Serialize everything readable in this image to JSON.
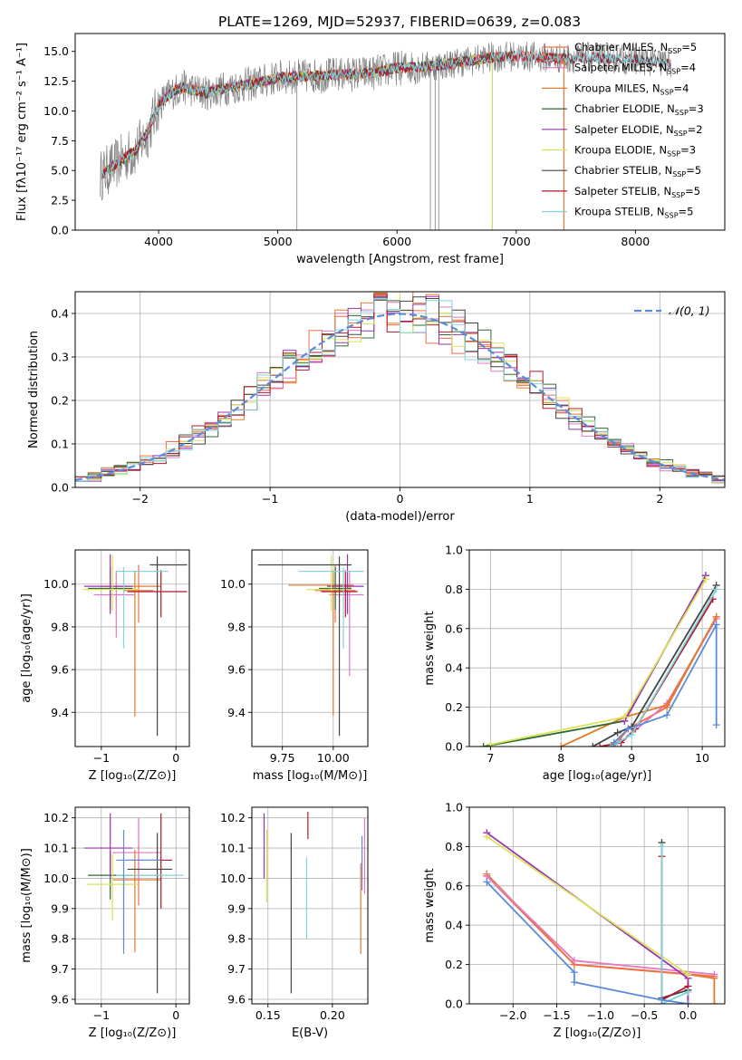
{
  "figure": {
    "title": "PLATE=1269, MJD=52937, FIBERID=0639, z=0.083",
    "colors": {
      "Chabrier MILES": "#f46d43",
      "Salpeter MILES": "#e377c2",
      "Kroupa MILES": "#e07b2a",
      "Chabrier ELODIE": "#2f6b2f",
      "Salpeter ELODIE": "#9b30b0",
      "Kroupa ELODIE": "#d8e35a",
      "Chabrier STELIB": "#444444",
      "Salpeter STELIB": "#b2182b",
      "Kroupa STELIB": "#80d4dc",
      "data": "#808080",
      "blue": "#5b8bd9"
    }
  },
  "chart_data": [
    {
      "id": "spectrum",
      "type": "line",
      "xlabel": "wavelength [Angstrom, rest frame]",
      "ylabel": "Flux [fλ10⁻¹⁷ erg cm⁻² s⁻¹ A⁻¹]",
      "xlim": [
        3300,
        8750
      ],
      "ylim": [
        0,
        16.5
      ],
      "xticks": [
        4000,
        5000,
        6000,
        7000,
        8000
      ],
      "yticks": [
        0.0,
        2.5,
        5.0,
        7.5,
        10.0,
        12.5,
        15.0
      ],
      "legend_position": "top-right",
      "legend": [
        "Chabrier MILES, N_SSP=5",
        "Salpeter MILES, N_SSP=4",
        "Kroupa MILES, N_SSP=4",
        "Chabrier ELODIE, N_SSP=3",
        "Salpeter ELODIE, N_SSP=2",
        "Kroupa ELODIE, N_SSP=3",
        "Chabrier STELIB, N_SSP=5",
        "Salpeter STELIB, N_SSP=5",
        "Kroupa STELIB, N_SSP=5"
      ],
      "model_continuum": {
        "x": [
          3500,
          3600,
          3700,
          3800,
          3900,
          4000,
          4100,
          4200,
          4400,
          4600,
          4800,
          5000,
          5200,
          5400,
          5600,
          5800,
          6000,
          6200,
          6400,
          6600,
          6800,
          7000,
          7200,
          7400,
          7600,
          7800,
          8000,
          8200,
          8300
        ],
        "y": [
          4.5,
          5.2,
          6.0,
          6.6,
          8.0,
          10.5,
          11.5,
          12.0,
          11.5,
          12.0,
          12.3,
          12.8,
          12.9,
          13.0,
          13.1,
          13.2,
          13.6,
          13.7,
          13.9,
          14.2,
          14.5,
          14.6,
          14.5,
          14.4,
          14.5,
          14.4,
          14.3,
          14.1,
          14.0
        ]
      }
    },
    {
      "id": "residuals",
      "type": "line",
      "xlabel": "(data-model)/error",
      "ylabel": "Normed distribution",
      "xlim": [
        -2.5,
        2.5
      ],
      "ylim": [
        0,
        0.45
      ],
      "xticks": [
        -2,
        -1,
        0,
        1,
        2
      ],
      "xticklabels": [
        "−2",
        "−1",
        "0",
        "1",
        "2"
      ],
      "yticks": [
        0.0,
        0.1,
        0.2,
        0.3,
        0.4
      ],
      "legend": [
        "𝒩(0, 1)"
      ],
      "legend_position": "top-right",
      "curve": "normal(0,1)"
    },
    {
      "id": "age-vs-Z",
      "type": "scatter",
      "xlabel": "Z [log₁₀(Z/Z⊙)]",
      "ylabel": "age  [log₁₀(age/yr)]",
      "xlim": [
        -1.35,
        0.18
      ],
      "ylim": [
        9.24,
        10.16
      ],
      "xticks": [
        -1,
        0
      ],
      "xticklabels": [
        "−1",
        "0"
      ],
      "yticks": [
        9.4,
        9.6,
        9.8,
        10.0
      ],
      "points": [
        {
          "model": "Chabrier MILES",
          "x": -0.5,
          "y": 9.97,
          "xerr": [
            0.2,
            0.2
          ],
          "yerr": [
            0.15,
            0.12
          ]
        },
        {
          "model": "Salpeter MILES",
          "x": -0.8,
          "y": 9.95,
          "xerr": [
            0.3,
            0.25
          ],
          "yerr": [
            0.2,
            0.11
          ]
        },
        {
          "model": "Kroupa MILES",
          "x": -0.55,
          "y": 9.99,
          "xerr": [
            0.45,
            0.35
          ],
          "yerr": [
            0.61,
            0.07
          ]
        },
        {
          "model": "Chabrier ELODIE",
          "x": -0.88,
          "y": 9.98,
          "xerr": [
            0.3,
            0.3
          ],
          "yerr": [
            0.1,
            0.1
          ]
        },
        {
          "model": "Salpeter ELODIE",
          "x": -0.88,
          "y": 9.99,
          "xerr": [
            0.35,
            0.3
          ],
          "yerr": [
            0.13,
            0.15
          ]
        },
        {
          "model": "Kroupa ELODIE",
          "x": -0.85,
          "y": 9.975,
          "xerr": [
            0.4,
            0.35
          ],
          "yerr": [
            0.1,
            0.16
          ]
        },
        {
          "model": "Chabrier STELIB",
          "x": -0.25,
          "y": 10.09,
          "xerr": [
            0.1,
            0.4
          ],
          "yerr": [
            0.8,
            0.04
          ]
        },
        {
          "model": "Salpeter STELIB",
          "x": -0.2,
          "y": 9.965,
          "xerr": [
            0.45,
            0.35
          ],
          "yerr": [
            0.12,
            0.1
          ]
        },
        {
          "model": "Kroupa STELIB",
          "x": -0.7,
          "y": 10.06,
          "xerr": [
            0.1,
            0.6
          ],
          "yerr": [
            0.36,
            0.02
          ]
        }
      ]
    },
    {
      "id": "age-vs-mass",
      "type": "scatter",
      "xlabel": "mass [log₁₀(M/M⊙)]",
      "ylabel": "",
      "xlim": [
        9.6,
        10.17
      ],
      "ylim": [
        9.24,
        10.16
      ],
      "xticks": [
        9.75,
        10.0
      ],
      "xticklabels": [
        "9.75",
        "10.00"
      ],
      "yticks": [
        9.4,
        9.6,
        9.8,
        10.0
      ],
      "points": [
        {
          "model": "Chabrier MILES",
          "x": 10.01,
          "y": 9.97,
          "xerr": [
            0.1,
            0.1
          ],
          "yerr": [
            0.15,
            0.12
          ]
        },
        {
          "model": "Salpeter MILES",
          "x": 10.08,
          "y": 9.95,
          "xerr": [
            0.1,
            0.07
          ],
          "yerr": [
            0.38,
            0.11
          ]
        },
        {
          "model": "Kroupa MILES",
          "x": 10.0,
          "y": 9.995,
          "xerr": [
            0.22,
            0.1
          ],
          "yerr": [
            0.61,
            0.07
          ]
        },
        {
          "model": "Chabrier ELODIE",
          "x": 10.01,
          "y": 9.98,
          "xerr": [
            0.08,
            0.08
          ],
          "yerr": [
            0.1,
            0.1
          ]
        },
        {
          "model": "Salpeter ELODIE",
          "x": 10.07,
          "y": 9.99,
          "xerr": [
            0.1,
            0.08
          ],
          "yerr": [
            0.13,
            0.15
          ]
        },
        {
          "model": "Kroupa ELODIE",
          "x": 9.99,
          "y": 9.975,
          "xerr": [
            0.12,
            0.1
          ],
          "yerr": [
            0.1,
            0.16
          ]
        },
        {
          "model": "Chabrier STELIB",
          "x": 10.03,
          "y": 10.09,
          "xerr": [
            0.4,
            0.06
          ],
          "yerr": [
            0.8,
            0.04
          ]
        },
        {
          "model": "Salpeter STELIB",
          "x": 10.06,
          "y": 9.965,
          "xerr": [
            0.12,
            0.06
          ],
          "yerr": [
            0.12,
            0.1
          ]
        },
        {
          "model": "Kroupa STELIB",
          "x": 10.05,
          "y": 10.06,
          "xerr": [
            0.22,
            0.1
          ],
          "yerr": [
            0.36,
            0.02
          ]
        }
      ]
    },
    {
      "id": "massweight-vs-age",
      "type": "line",
      "xlabel": "age  [log₁₀(age/yr)]",
      "ylabel": "mass weight",
      "xlim": [
        6.7,
        10.32
      ],
      "ylim": [
        0,
        1
      ],
      "xticks": [
        7,
        8,
        9,
        10
      ],
      "yticks": [
        0.0,
        0.2,
        0.4,
        0.6,
        0.8,
        1.0
      ],
      "series": [
        {
          "model": "Chabrier MILES",
          "x": [
            8.75,
            8.95,
            9.5,
            10.2
          ],
          "y": [
            0.0,
            0.09,
            0.2,
            0.66
          ]
        },
        {
          "model": "Salpeter MILES",
          "x": [
            8.85,
            9.5,
            10.2
          ],
          "y": [
            0.02,
            0.22,
            0.65
          ]
        },
        {
          "model": "Kroupa MILES",
          "x": [
            8.0,
            8.9,
            9.5,
            10.2
          ],
          "y": [
            0.0,
            0.15,
            0.21,
            0.66
          ]
        },
        {
          "model": "Chabrier ELODIE",
          "x": [
            6.9,
            8.9,
            10.05
          ],
          "y": [
            0.0,
            0.13,
            0.87
          ]
        },
        {
          "model": "Salpeter ELODIE",
          "x": [
            8.9,
            10.05
          ],
          "y": [
            0.13,
            0.87
          ]
        },
        {
          "model": "Kroupa ELODIE",
          "x": [
            7.0,
            8.9,
            10.05
          ],
          "y": [
            0.01,
            0.15,
            0.85
          ]
        },
        {
          "model": "Chabrier STELIB",
          "x": [
            8.45,
            8.8,
            9.0,
            10.2
          ],
          "y": [
            0.0,
            0.07,
            0.1,
            0.82
          ]
        },
        {
          "model": "Salpeter STELIB",
          "x": [
            8.55,
            8.85,
            9.05,
            10.15
          ],
          "y": [
            0.0,
            0.02,
            0.09,
            0.75
          ]
        },
        {
          "model": "Kroupa STELIB",
          "x": [
            8.7,
            8.8,
            9.0,
            10.2
          ],
          "y": [
            0.0,
            0.02,
            0.06,
            0.8
          ]
        },
        {
          "model": "blue",
          "x": [
            8.75,
            8.95,
            9.5,
            10.2,
            10.2
          ],
          "y": [
            0.02,
            0.09,
            0.16,
            0.62,
            0.11
          ]
        }
      ]
    },
    {
      "id": "mass-vs-Z",
      "type": "scatter",
      "xlabel": "Z [log₁₀(Z/Z⊙)]",
      "ylabel": "mass [log₁₀(M/M⊙)]",
      "xlim": [
        -1.35,
        0.18
      ],
      "ylim": [
        9.585,
        10.235
      ],
      "xticks": [
        -1,
        0
      ],
      "xticklabels": [
        "−1",
        "0"
      ],
      "yticks": [
        9.6,
        9.7,
        9.8,
        9.9,
        10.0,
        10.1,
        10.2
      ],
      "points": [
        {
          "model": "Chabrier MILES",
          "x": -0.5,
          "y": 10.01,
          "xerr": [
            0.25,
            0.3
          ],
          "yerr": [
            0.1,
            0.1
          ]
        },
        {
          "model": "Salpeter MILES",
          "x": -0.5,
          "y": 10.085,
          "xerr": [
            0.35,
            0.3
          ],
          "yerr": [
            0.1,
            0.115
          ]
        },
        {
          "model": "Kroupa MILES",
          "x": -0.55,
          "y": 9.995,
          "xerr": [
            0.3,
            0.35
          ],
          "yerr": [
            0.24,
            0.1
          ]
        },
        {
          "model": "Chabrier ELODIE",
          "x": -0.88,
          "y": 10.01,
          "xerr": [
            0.3,
            0.3
          ],
          "yerr": [
            0.08,
            0.08
          ]
        },
        {
          "model": "Salpeter ELODIE",
          "x": -0.88,
          "y": 10.1,
          "xerr": [
            0.35,
            0.3
          ],
          "yerr": [
            0.1,
            0.115
          ]
        },
        {
          "model": "Kroupa ELODIE",
          "x": -0.85,
          "y": 9.98,
          "xerr": [
            0.35,
            0.35
          ],
          "yerr": [
            0.12,
            0.1
          ]
        },
        {
          "model": "Chabrier STELIB",
          "x": -0.25,
          "y": 10.03,
          "xerr": [
            0.4,
            0.2
          ],
          "yerr": [
            0.41,
            0.12
          ]
        },
        {
          "model": "Salpeter STELIB",
          "x": -0.2,
          "y": 10.06,
          "xerr": [
            0.45,
            0.15
          ],
          "yerr": [
            0.16,
            0.155
          ]
        },
        {
          "model": "Kroupa STELIB",
          "x": -0.7,
          "y": 10.01,
          "xerr": [
            0.1,
            0.8
          ],
          "yerr": [
            0.23,
            0.06
          ]
        },
        {
          "model": "blue",
          "x": -0.7,
          "y": 10.06,
          "xerr": [
            0.1,
            0.5
          ],
          "yerr": [
            0.31,
            0.1
          ]
        }
      ]
    },
    {
      "id": "mass-vs-EBV",
      "type": "scatter",
      "xlabel": "E(B-V)",
      "ylabel": "",
      "xlim": [
        0.1375,
        0.2275
      ],
      "ylim": [
        9.585,
        10.235
      ],
      "xticks": [
        0.15,
        0.2
      ],
      "xticklabels": [
        "0.15",
        "0.20"
      ],
      "yticks": [
        9.6,
        9.7,
        9.8,
        9.9,
        10.0,
        10.1,
        10.2
      ],
      "points": [
        {
          "model": "Salpeter ELODIE",
          "x": 0.147,
          "y": 10.1,
          "yerr": [
            0.1,
            0.115
          ]
        },
        {
          "model": "Kroupa ELODIE",
          "x": 0.149,
          "y": 10.04,
          "yerr": [
            0.12,
            0.12
          ]
        },
        {
          "model": "Chabrier STELIB",
          "x": 0.168,
          "y": 9.93,
          "yerr": [
            0.31,
            0.22
          ]
        },
        {
          "model": "Kroupa STELIB",
          "x": 0.18,
          "y": 9.97,
          "yerr": [
            0.17,
            0.1
          ]
        },
        {
          "model": "Salpeter STELIB",
          "x": 0.181,
          "y": 10.18,
          "yerr": [
            0.05,
            0.04
          ]
        },
        {
          "model": "Kroupa MILES",
          "x": 0.222,
          "y": 9.95,
          "yerr": [
            0.2,
            0.1
          ]
        },
        {
          "model": "blue",
          "x": 0.223,
          "y": 10.06,
          "yerr": [
            0.1,
            0.08
          ]
        },
        {
          "model": "Salpeter MILES",
          "x": 0.225,
          "y": 10.08,
          "yerr": [
            0.13,
            0.12
          ]
        }
      ]
    },
    {
      "id": "massweight-vs-Z",
      "type": "line",
      "xlabel": "Z [log₁₀(Z/Z⊙)]",
      "ylabel": "mass weight",
      "xlim": [
        -2.5,
        0.42
      ],
      "ylim": [
        0,
        1
      ],
      "xticks": [
        -2.0,
        -1.5,
        -1.0,
        -0.5,
        0.0
      ],
      "xticklabels": [
        "−2.0",
        "−1.5",
        "−1.0",
        "−0.5",
        "0.0"
      ],
      "yticks": [
        0.0,
        0.2,
        0.4,
        0.6,
        0.8,
        1.0
      ],
      "series": [
        {
          "model": "Kroupa MILES",
          "x": [
            -2.3,
            -1.3,
            0.0,
            0.3,
            0.3
          ],
          "y": [
            0.66,
            0.2,
            0.15,
            0.13,
            0.0
          ]
        },
        {
          "model": "Chabrier MILES",
          "x": [
            -2.3,
            -1.3,
            0.3
          ],
          "y": [
            0.65,
            0.2,
            0.14
          ]
        },
        {
          "model": "Salpeter MILES",
          "x": [
            -2.3,
            -1.3,
            0.3
          ],
          "y": [
            0.65,
            0.22,
            0.15
          ]
        },
        {
          "model": "Salpeter ELODIE",
          "x": [
            -2.3,
            0.0,
            0.0
          ],
          "y": [
            0.87,
            0.13,
            0.0
          ]
        },
        {
          "model": "Kroupa ELODIE",
          "x": [
            -2.3,
            0.0
          ],
          "y": [
            0.85,
            0.15
          ]
        },
        {
          "model": "Chabrier STELIB",
          "x": [
            -0.3,
            -0.3,
            0.0
          ],
          "y": [
            0.82,
            0.03,
            0.07
          ]
        },
        {
          "model": "Salpeter STELIB",
          "x": [
            -0.3,
            -0.3,
            0.0
          ],
          "y": [
            0.75,
            0.02,
            0.09
          ]
        },
        {
          "model": "Kroupa STELIB",
          "x": [
            -0.3,
            -0.3,
            0.0
          ],
          "y": [
            0.8,
            0.0,
            0.06
          ]
        },
        {
          "model": "blue",
          "x": [
            -2.3,
            -1.3,
            -1.3,
            -0.3,
            0.0
          ],
          "y": [
            0.62,
            0.16,
            0.11,
            0.02,
            0.0
          ]
        }
      ]
    }
  ]
}
